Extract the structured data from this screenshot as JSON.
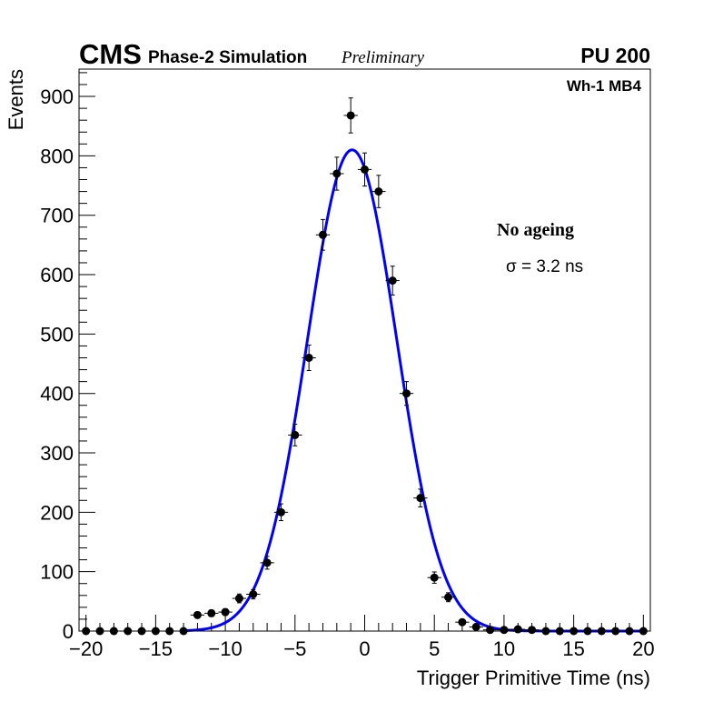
{
  "chart_data": {
    "type": "scatter",
    "title_cms": "CMS",
    "title_sub": "Phase-2 Simulation",
    "title_prelim": "Preliminary",
    "pileup": "PU 200",
    "region_label": "Wh-1 MB4",
    "annotation_title": "No ageing",
    "annotation_sigma": "σ = 3.2 ns",
    "xlabel": "Trigger Primitive Time (ns)",
    "ylabel": "Events",
    "xlim": [
      -20.5,
      20.5
    ],
    "ylim": [
      0,
      946
    ],
    "xticks": [
      -20,
      -15,
      -10,
      -5,
      0,
      5,
      10,
      15,
      20
    ],
    "xtick_labels": [
      "−20",
      "−15",
      "−10",
      "−5",
      "0",
      "5",
      "10",
      "15",
      "20"
    ],
    "yticks": [
      0,
      100,
      200,
      300,
      400,
      500,
      600,
      700,
      800,
      900
    ],
    "ytick_labels": [
      "0",
      "100",
      "200",
      "300",
      "400",
      "500",
      "600",
      "700",
      "800",
      "900"
    ],
    "x": [
      -20,
      -19,
      -18,
      -17,
      -16,
      -15,
      -14,
      -13,
      -12,
      -11,
      -10,
      -9,
      -8,
      -7,
      -6,
      -5,
      -4,
      -3,
      -2,
      -1,
      0,
      1,
      2,
      3,
      4,
      5,
      6,
      7,
      8,
      9,
      10,
      11,
      12,
      13,
      14,
      15,
      16,
      17,
      18,
      19,
      20
    ],
    "values": [
      0,
      0,
      0,
      0,
      0,
      0,
      0,
      0,
      27,
      30,
      32,
      55,
      62,
      115,
      200,
      330,
      460,
      667,
      770,
      868,
      777,
      740,
      590,
      400,
      224,
      90,
      57,
      15,
      7,
      2,
      2,
      3,
      2,
      0,
      0,
      0,
      0,
      0,
      0,
      0,
      0
    ],
    "fit": {
      "type": "gaussian",
      "amplitude": 810,
      "mean": -0.9,
      "sigma": 3.2,
      "color": "#0000ff"
    },
    "marker_color": "#000000"
  }
}
